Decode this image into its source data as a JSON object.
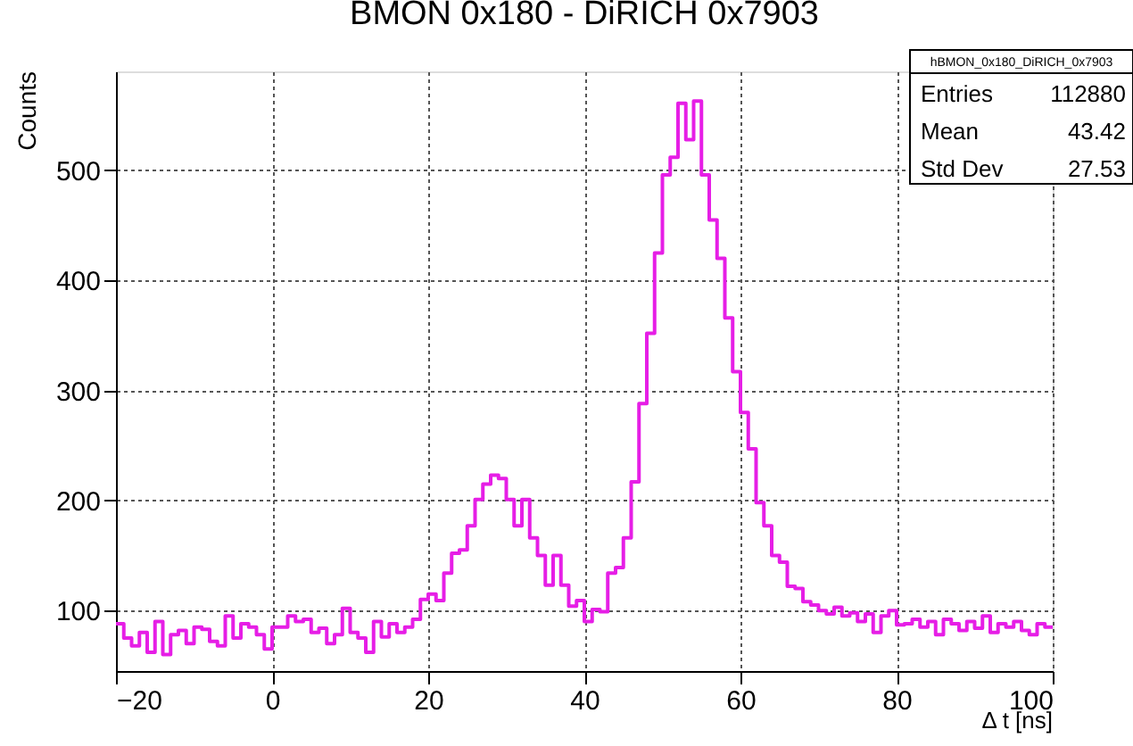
{
  "chart_data": {
    "type": "histogram",
    "title": "BMON 0x180 - DiRICH 0x7903",
    "xlabel": "Δ t [ns]",
    "ylabel": "Counts",
    "bins": [
      -20,
      -19,
      -18,
      -17,
      -16,
      -15,
      -14,
      -13,
      -12,
      -11,
      -10,
      -9,
      -8,
      -7,
      -6,
      -5,
      -4,
      -3,
      -2,
      -1,
      0,
      1,
      2,
      3,
      4,
      5,
      6,
      7,
      8,
      9,
      10,
      11,
      12,
      13,
      14,
      15,
      16,
      17,
      18,
      19,
      20,
      21,
      22,
      23,
      24,
      25,
      26,
      27,
      28,
      29,
      30,
      31,
      32,
      33,
      34,
      35,
      36,
      37,
      38,
      39,
      40,
      41,
      42,
      43,
      44,
      45,
      46,
      47,
      48,
      49,
      50,
      51,
      52,
      53,
      54,
      55,
      56,
      57,
      58,
      59,
      60,
      61,
      62,
      63,
      64,
      65,
      66,
      67,
      68,
      69,
      70,
      71,
      72,
      73,
      74,
      75,
      76,
      77,
      78,
      79,
      80,
      81,
      82,
      83,
      84,
      85,
      86,
      87,
      88,
      89,
      90,
      91,
      92,
      93,
      94,
      95,
      96,
      97,
      98,
      99,
      100
    ],
    "values": [
      88,
      75,
      68,
      80,
      62,
      90,
      60,
      78,
      82,
      70,
      85,
      83,
      72,
      68,
      95,
      75,
      88,
      85,
      78,
      65,
      85,
      85,
      95,
      90,
      92,
      80,
      84,
      70,
      78,
      102,
      80,
      75,
      62,
      90,
      76,
      88,
      80,
      85,
      92,
      110,
      115,
      109,
      134,
      152,
      155,
      177,
      201,
      215,
      223,
      220,
      201,
      177,
      201,
      166,
      150,
      123,
      150,
      123,
      104,
      109,
      90,
      101,
      99,
      134,
      139,
      166,
      217,
      288,
      352,
      425,
      496,
      512,
      561,
      528,
      563,
      496,
      455,
      420,
      366,
      317,
      280,
      247,
      198,
      177,
      150,
      144,
      122,
      120,
      108,
      105,
      100,
      97,
      103,
      95,
      98,
      90,
      97,
      80,
      95,
      100,
      87,
      88,
      92,
      85,
      90,
      78,
      92,
      88,
      82,
      90,
      84,
      95,
      80,
      88,
      85,
      90,
      82,
      78,
      88,
      85
    ],
    "color": "#e61ee6",
    "xlim": [
      -20,
      100
    ],
    "xticks": [
      -20,
      0,
      20,
      40,
      60,
      80,
      100
    ],
    "ylim": [
      45,
      590
    ],
    "yticks": [
      100,
      200,
      300,
      400,
      500
    ],
    "grid": true,
    "annotations": [
      "hBMON_0x180_DiRICH_0x7903",
      "Entries",
      "112880",
      "Mean",
      "43.42",
      "Std Dev",
      "27.53"
    ]
  }
}
